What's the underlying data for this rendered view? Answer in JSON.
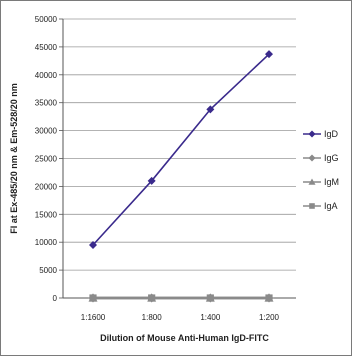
{
  "chart_data": {
    "type": "line",
    "title": "",
    "xlabel": "Dilution of Mouse Anti-Human IgD-FITC",
    "ylabel": "FI at Ex-485/20 nm & Em-528/20 nm",
    "categories": [
      "1:1600",
      "1:800",
      "1:400",
      "1:200"
    ],
    "ylim": [
      0,
      50000
    ],
    "yticks": [
      0,
      5000,
      10000,
      15000,
      20000,
      25000,
      30000,
      35000,
      40000,
      45000,
      50000
    ],
    "ytick_labels": [
      "0",
      "5000",
      "10000",
      "15000",
      "20000",
      "25000",
      "30000",
      "35000",
      "40000",
      "45000",
      "50000"
    ],
    "grid": true,
    "legend_position": "right",
    "series": [
      {
        "name": "IgD",
        "values": [
          9500,
          21000,
          33800,
          43700
        ],
        "color": "#3a2a8c",
        "marker": "diamond"
      },
      {
        "name": "IgG",
        "values": [
          0,
          0,
          0,
          0
        ],
        "color": "#8a8a8a",
        "marker": "diamond"
      },
      {
        "name": "IgM",
        "values": [
          0,
          0,
          0,
          0
        ],
        "color": "#8a8a8a",
        "marker": "triangle"
      },
      {
        "name": "IgA",
        "values": [
          0,
          0,
          0,
          0
        ],
        "color": "#8a8a8a",
        "marker": "square"
      }
    ]
  }
}
